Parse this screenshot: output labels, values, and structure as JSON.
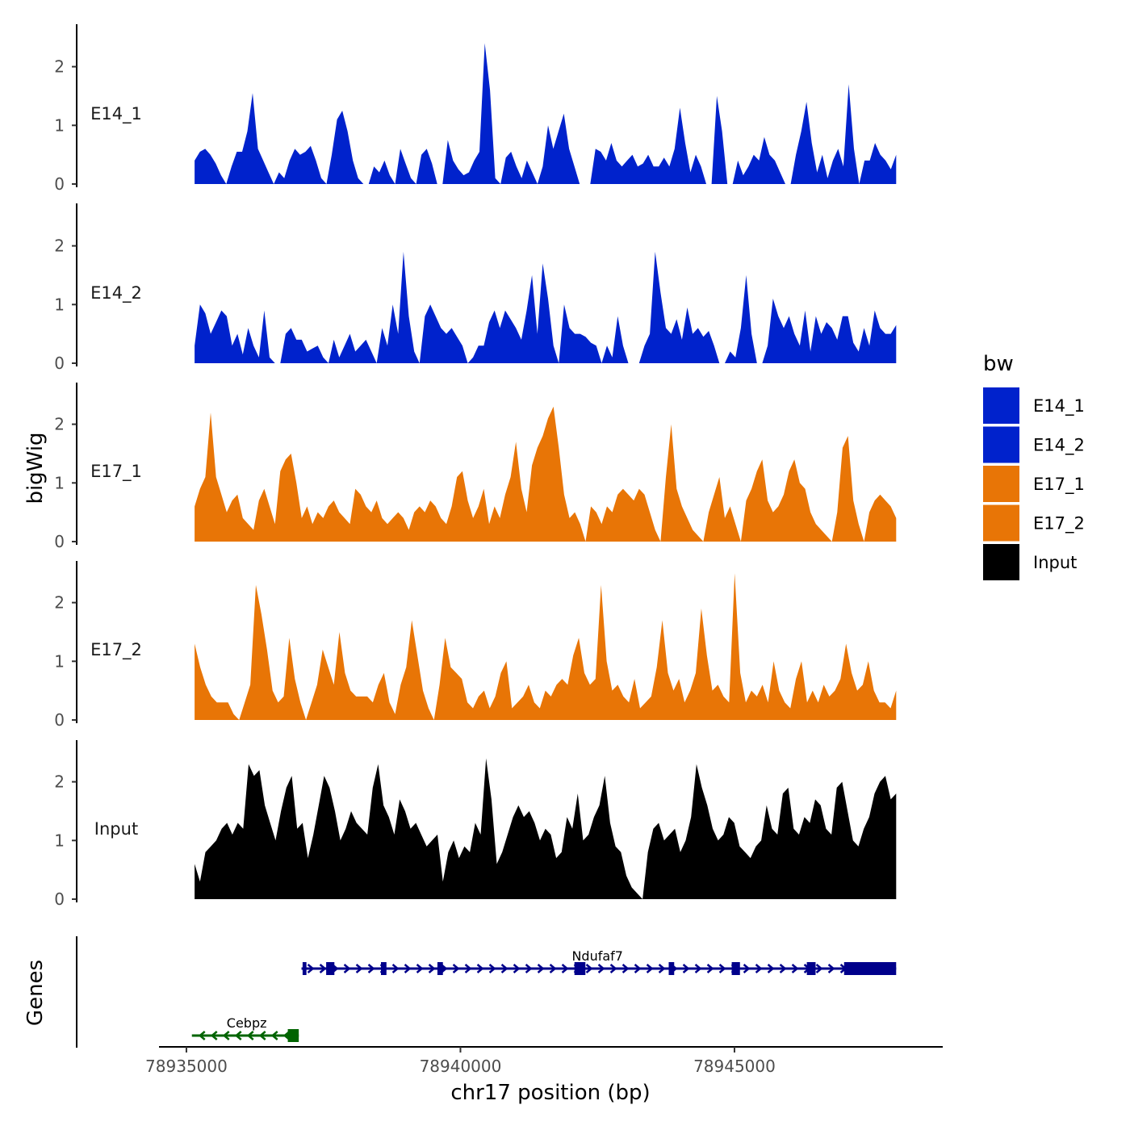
{
  "chart_data": {
    "type": "area",
    "title": "",
    "xlabel": "chr17 position (bp)",
    "ylabel": "bigWig",
    "gene_track_label": "Genes",
    "xlim": [
      78934500,
      78948800
    ],
    "ylim": [
      0,
      2.6
    ],
    "x_ticks": [
      78935000,
      78940000,
      78945000
    ],
    "x_tick_labels": [
      "78935000",
      "78940000",
      "78945000"
    ],
    "y_ticks": [
      0,
      1,
      2
    ],
    "y_tick_labels": [
      "0",
      "1",
      "2"
    ],
    "legend": {
      "title": "bw",
      "placement": "right",
      "entries": [
        {
          "label": "E14_1",
          "color": "#0022CC"
        },
        {
          "label": "E14_2",
          "color": "#0022CC"
        },
        {
          "label": "E17_1",
          "color": "#E87506"
        },
        {
          "label": "E17_2",
          "color": "#E87506"
        },
        {
          "label": "Input",
          "color": "#000000"
        }
      ]
    },
    "x_start": 78935150,
    "x_end": 78947950,
    "series": [
      {
        "name": "E14_1",
        "color": "#0022CC",
        "values": [
          0.4,
          0.55,
          0.6,
          0.5,
          0.35,
          0.15,
          0,
          0.3,
          0.55,
          0.55,
          0.9,
          1.55,
          0.6,
          0.4,
          0.2,
          0,
          0.2,
          0.1,
          0.4,
          0.6,
          0.5,
          0.55,
          0.65,
          0.4,
          0.1,
          0,
          0.5,
          1.1,
          1.25,
          0.9,
          0.4,
          0.1,
          0,
          0,
          0.3,
          0.2,
          0.4,
          0.15,
          0,
          0.6,
          0.35,
          0.1,
          0,
          0.5,
          0.6,
          0.35,
          0,
          0,
          0.75,
          0.4,
          0.25,
          0.15,
          0.2,
          0.4,
          0.55,
          2.4,
          1.6,
          0.1,
          0,
          0.45,
          0.55,
          0.3,
          0.1,
          0.4,
          0.2,
          0,
          0.3,
          1.0,
          0.6,
          0.9,
          1.2,
          0.6,
          0.3,
          0,
          0,
          0,
          0.6,
          0.55,
          0.4,
          0.7,
          0.4,
          0.3,
          0.4,
          0.5,
          0.3,
          0.35,
          0.5,
          0.3,
          0.3,
          0.45,
          0.3,
          0.6,
          1.3,
          0.7,
          0.2,
          0.5,
          0.3,
          0,
          0,
          1.5,
          0.9,
          0,
          0,
          0.4,
          0.15,
          0.3,
          0.5,
          0.4,
          0.8,
          0.5,
          0.4,
          0.2,
          0,
          0,
          0.5,
          0.9,
          1.4,
          0.7,
          0.2,
          0.5,
          0.1,
          0.4,
          0.6,
          0.3,
          1.7,
          0.6,
          0,
          0.4,
          0.4,
          0.7,
          0.5,
          0.4,
          0.25,
          0.5
        ]
      },
      {
        "name": "E14_2",
        "color": "#0022CC",
        "values": [
          0.3,
          1.0,
          0.85,
          0.5,
          0.7,
          0.9,
          0.8,
          0.3,
          0.5,
          0.15,
          0.6,
          0.3,
          0.1,
          0.9,
          0.1,
          0,
          0,
          0.5,
          0.6,
          0.4,
          0.4,
          0.2,
          0.25,
          0.3,
          0.1,
          0,
          0.4,
          0.1,
          0.3,
          0.5,
          0.2,
          0.3,
          0.4,
          0.2,
          0,
          0.6,
          0.3,
          1.0,
          0.5,
          1.9,
          0.8,
          0.2,
          0,
          0.8,
          1.0,
          0.8,
          0.6,
          0.5,
          0.6,
          0.45,
          0.3,
          0,
          0.1,
          0.3,
          0.3,
          0.7,
          0.9,
          0.6,
          0.9,
          0.75,
          0.6,
          0.4,
          0.9,
          1.5,
          0.5,
          1.7,
          1.1,
          0.3,
          0,
          1.0,
          0.6,
          0.5,
          0.5,
          0.45,
          0.35,
          0.3,
          0,
          0.3,
          0.1,
          0.8,
          0.3,
          0,
          0,
          0,
          0.3,
          0.5,
          1.9,
          1.2,
          0.6,
          0.5,
          0.75,
          0.4,
          0.95,
          0.5,
          0.6,
          0.45,
          0.55,
          0.3,
          0,
          0,
          0.2,
          0.1,
          0.6,
          1.5,
          0.5,
          0,
          0,
          0.3,
          1.1,
          0.8,
          0.6,
          0.8,
          0.5,
          0.3,
          0.9,
          0.2,
          0.8,
          0.5,
          0.7,
          0.6,
          0.4,
          0.8,
          0.8,
          0.35,
          0.2,
          0.6,
          0.3,
          0.9,
          0.6,
          0.5,
          0.5,
          0.65
        ]
      },
      {
        "name": "E17_1",
        "color": "#E87506",
        "values": [
          0.6,
          0.9,
          1.1,
          2.2,
          1.1,
          0.8,
          0.5,
          0.7,
          0.8,
          0.4,
          0.3,
          0.2,
          0.7,
          0.9,
          0.6,
          0.3,
          1.2,
          1.4,
          1.5,
          1.0,
          0.4,
          0.6,
          0.3,
          0.5,
          0.4,
          0.6,
          0.7,
          0.5,
          0.4,
          0.3,
          0.9,
          0.8,
          0.6,
          0.5,
          0.7,
          0.4,
          0.3,
          0.4,
          0.5,
          0.4,
          0.2,
          0.5,
          0.6,
          0.5,
          0.7,
          0.6,
          0.4,
          0.3,
          0.6,
          1.1,
          1.2,
          0.7,
          0.4,
          0.6,
          0.9,
          0.3,
          0.6,
          0.4,
          0.8,
          1.1,
          1.7,
          0.9,
          0.5,
          1.3,
          1.6,
          1.8,
          2.1,
          2.3,
          1.6,
          0.8,
          0.4,
          0.5,
          0.3,
          0,
          0.6,
          0.5,
          0.3,
          0.6,
          0.5,
          0.8,
          0.9,
          0.8,
          0.7,
          0.9,
          0.8,
          0.5,
          0.2,
          0,
          1.1,
          2.0,
          0.9,
          0.6,
          0.4,
          0.2,
          0.1,
          0,
          0.5,
          0.8,
          1.1,
          0.4,
          0.6,
          0.3,
          0,
          0.7,
          0.9,
          1.2,
          1.4,
          0.7,
          0.5,
          0.6,
          0.8,
          1.2,
          1.4,
          1.0,
          0.9,
          0.5,
          0.3,
          0.2,
          0.1,
          0,
          0.5,
          1.6,
          1.8,
          0.7,
          0.3,
          0,
          0.5,
          0.7,
          0.8,
          0.7,
          0.6,
          0.4
        ]
      },
      {
        "name": "E17_2",
        "color": "#E87506",
        "values": [
          1.3,
          0.9,
          0.6,
          0.4,
          0.3,
          0.3,
          0.3,
          0.1,
          0,
          0.3,
          0.6,
          2.3,
          1.8,
          1.2,
          0.5,
          0.3,
          0.4,
          1.4,
          0.7,
          0.3,
          0,
          0.3,
          0.6,
          1.2,
          0.9,
          0.6,
          1.5,
          0.8,
          0.5,
          0.4,
          0.4,
          0.4,
          0.3,
          0.6,
          0.8,
          0.3,
          0.1,
          0.6,
          0.9,
          1.7,
          1.1,
          0.5,
          0.2,
          0,
          0.6,
          1.4,
          0.9,
          0.8,
          0.7,
          0.3,
          0.2,
          0.4,
          0.5,
          0.2,
          0.4,
          0.8,
          1.0,
          0.2,
          0.3,
          0.4,
          0.6,
          0.3,
          0.2,
          0.5,
          0.4,
          0.6,
          0.7,
          0.6,
          1.1,
          1.4,
          0.8,
          0.6,
          0.7,
          2.3,
          1.0,
          0.5,
          0.6,
          0.4,
          0.3,
          0.7,
          0.2,
          0.3,
          0.4,
          0.9,
          1.7,
          0.8,
          0.5,
          0.7,
          0.3,
          0.5,
          0.8,
          1.9,
          1.1,
          0.5,
          0.6,
          0.4,
          0.3,
          2.5,
          0.8,
          0.3,
          0.5,
          0.4,
          0.6,
          0.3,
          1.0,
          0.5,
          0.3,
          0.2,
          0.7,
          1.0,
          0.3,
          0.5,
          0.3,
          0.6,
          0.4,
          0.5,
          0.7,
          1.3,
          0.8,
          0.5,
          0.6,
          1.0,
          0.5,
          0.3,
          0.3,
          0.2,
          0.5
        ]
      },
      {
        "name": "Input",
        "color": "#000000",
        "values": [
          0.6,
          0.3,
          0.8,
          0.9,
          1.0,
          1.2,
          1.3,
          1.1,
          1.3,
          1.2,
          2.3,
          2.1,
          2.2,
          1.6,
          1.3,
          1.0,
          1.5,
          1.9,
          2.1,
          1.2,
          1.3,
          0.7,
          1.1,
          1.6,
          2.1,
          1.9,
          1.5,
          1.0,
          1.2,
          1.5,
          1.3,
          1.2,
          1.1,
          1.9,
          2.3,
          1.6,
          1.4,
          1.1,
          1.7,
          1.5,
          1.2,
          1.3,
          1.1,
          0.9,
          1.0,
          1.1,
          0.3,
          0.8,
          1.0,
          0.7,
          0.9,
          0.8,
          1.3,
          1.1,
          2.4,
          1.7,
          0.6,
          0.8,
          1.1,
          1.4,
          1.6,
          1.4,
          1.5,
          1.3,
          1.0,
          1.2,
          1.1,
          0.7,
          0.8,
          1.4,
          1.2,
          1.8,
          1.0,
          1.1,
          1.4,
          1.6,
          2.1,
          1.3,
          0.9,
          0.8,
          0.4,
          0.2,
          0.1,
          0,
          0.8,
          1.2,
          1.3,
          1.0,
          1.1,
          1.2,
          0.8,
          1.0,
          1.4,
          2.3,
          1.9,
          1.6,
          1.2,
          1.0,
          1.1,
          1.4,
          1.3,
          0.9,
          0.8,
          0.7,
          0.9,
          1.0,
          1.6,
          1.2,
          1.1,
          1.8,
          1.9,
          1.2,
          1.1,
          1.4,
          1.3,
          1.7,
          1.6,
          1.2,
          1.1,
          1.9,
          2.0,
          1.5,
          1.0,
          0.9,
          1.2,
          1.4,
          1.8,
          2.0,
          2.1,
          1.7,
          1.8
        ]
      }
    ],
    "genes": [
      {
        "name": "Ndufaf7",
        "color": "#00008B",
        "start": 78937100,
        "end": 78947950,
        "strand": "+",
        "row": 0,
        "exons": [
          [
            78937120,
            78937190
          ],
          [
            78937550,
            78937700
          ],
          [
            78938550,
            78938650
          ],
          [
            78939580,
            78939680
          ],
          [
            78942080,
            78942280
          ],
          [
            78943800,
            78943900
          ],
          [
            78944950,
            78945100
          ],
          [
            78946320,
            78946480
          ],
          [
            78947000,
            78947950
          ]
        ]
      },
      {
        "name": "Cebpz",
        "color": "#006400",
        "start": 78935100,
        "end": 78937050,
        "strand": "-",
        "row": 1,
        "exons": [
          [
            78936850,
            78937050
          ]
        ]
      }
    ]
  }
}
